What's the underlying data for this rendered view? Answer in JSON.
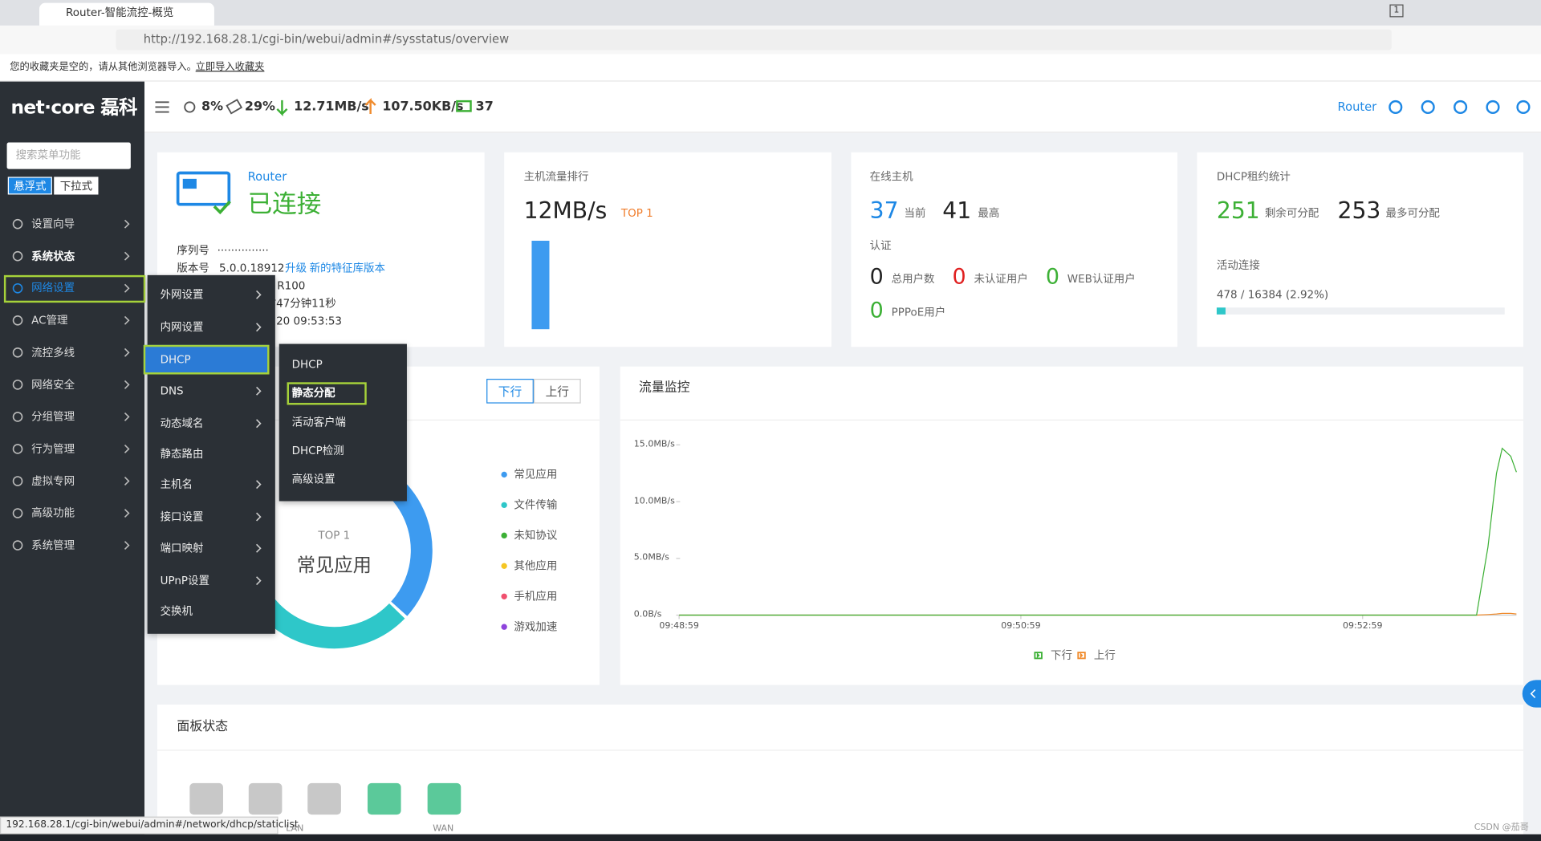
{
  "browser": {
    "tab_title": "Router-智能流控-概览",
    "tab_count": "1",
    "url": "http://192.168.28.1/cgi-bin/webui/admin#/sysstatus/overview",
    "bookmark_notice": "您的收藏夹是空的，请从其他浏览器导入。",
    "bookmark_import": "立即导入收藏夹",
    "status_url": "192.168.28.1/cgi-bin/webui/admin#/network/dhcp/staticlist"
  },
  "header": {
    "logo": "net·core 磊科",
    "cpu": "8%",
    "memory": "29%",
    "download": "12.71MB/s",
    "upload": "107.50KB/s",
    "hosts": "37",
    "device": "Router"
  },
  "sidebar": {
    "search_placeholder": "搜索菜单功能",
    "modes": [
      "悬浮式",
      "下拉式"
    ],
    "menu": [
      "设置向导",
      "系统状态",
      "网络设置",
      "AC管理",
      "流控多线",
      "网络安全",
      "分组管理",
      "行为管理",
      "虚拟专网",
      "高级功能",
      "系统管理"
    ]
  },
  "network_submenu": [
    "外网设置",
    "内网设置",
    "DHCP",
    "DNS",
    "动态域名",
    "静态路由",
    "主机名",
    "接口设置",
    "端口映射",
    "UPnP设置",
    "交换机"
  ],
  "dhcp_submenu": [
    "DHCP",
    "静态分配",
    "活动客户端",
    "DHCP检测",
    "高级设置"
  ],
  "router_card": {
    "name": "Router",
    "status": "已连接",
    "serial_label": "序列号",
    "serial": "···············",
    "version_label": "版本号",
    "version": "5.0.0.18912",
    "upgrade": "升级",
    "new_features": "新的特征库版本",
    "model": "R100",
    "uptime": "时47分钟11秒",
    "time": "20 09:53:53"
  },
  "host_traffic": {
    "title": "主机流量排行",
    "rate": "12MB/s",
    "rank": "TOP 1"
  },
  "online_hosts": {
    "title": "在线主机",
    "current": "37",
    "current_label": "当前",
    "max": "41",
    "max_label": "最高",
    "auth_title": "认证",
    "auth": [
      {
        "count": "0",
        "label": "总用户数"
      },
      {
        "count": "0",
        "label": "未认证用户"
      },
      {
        "count": "0",
        "label": "WEB认证用户"
      },
      {
        "count": "0",
        "label": "PPPoE用户"
      }
    ]
  },
  "dhcp_stats": {
    "title": "DHCP租约统计",
    "available": "251",
    "available_label": "剩余可分配",
    "max": "253",
    "max_label": "最多可分配",
    "active_title": "活动连接",
    "active": "478 / 16384 (2.92%)"
  },
  "app_traffic": {
    "tabs": [
      "下行",
      "上行"
    ],
    "rank": "TOP 1",
    "top_app": "常见应用",
    "legend": [
      {
        "name": "常见应用",
        "color": "#3d9bf0"
      },
      {
        "name": "文件传输",
        "color": "#2ec7c9"
      },
      {
        "name": "未知协议",
        "color": "#3cb035"
      },
      {
        "name": "其他应用",
        "color": "#f5c623"
      },
      {
        "name": "手机应用",
        "color": "#f0506e"
      },
      {
        "name": "游戏加速",
        "color": "#8e44dc"
      }
    ]
  },
  "traffic_monitor": {
    "title": "流量监控",
    "chart_data": {
      "type": "line",
      "x": [
        "09:48:59",
        "09:50:59",
        "09:52:59",
        "09:53:39",
        "09:53:43",
        "09:53:46",
        "09:53:48",
        "09:53:51",
        "09:53:53"
      ],
      "xlim": [
        "09:48:59",
        "09:53:53"
      ],
      "xticks": [
        "09:48:59",
        "09:50:59",
        "09:52:59"
      ],
      "ylim": [
        0,
        15.5
      ],
      "yticks": [
        {
          "value": 0,
          "label": "0.0B/s"
        },
        {
          "value": 5,
          "label": "5.0MB/s"
        },
        {
          "value": 10,
          "label": "10.0MB/s"
        },
        {
          "value": 15,
          "label": "15.0MB/s"
        }
      ],
      "series": [
        {
          "name": "下行",
          "color": "#3cb035",
          "values": [
            0,
            0,
            0,
            0,
            6,
            12.5,
            14.7,
            14,
            12.6
          ]
        },
        {
          "name": "上行",
          "color": "#f08c2e",
          "values": [
            0,
            0,
            0,
            0,
            0.05,
            0.1,
            0.15,
            0.15,
            0.1
          ]
        }
      ]
    }
  },
  "panel_status": {
    "title": "面板状态",
    "lan": "LAN",
    "wan": "WAN"
  },
  "watermark": "CSDN @茄哥"
}
